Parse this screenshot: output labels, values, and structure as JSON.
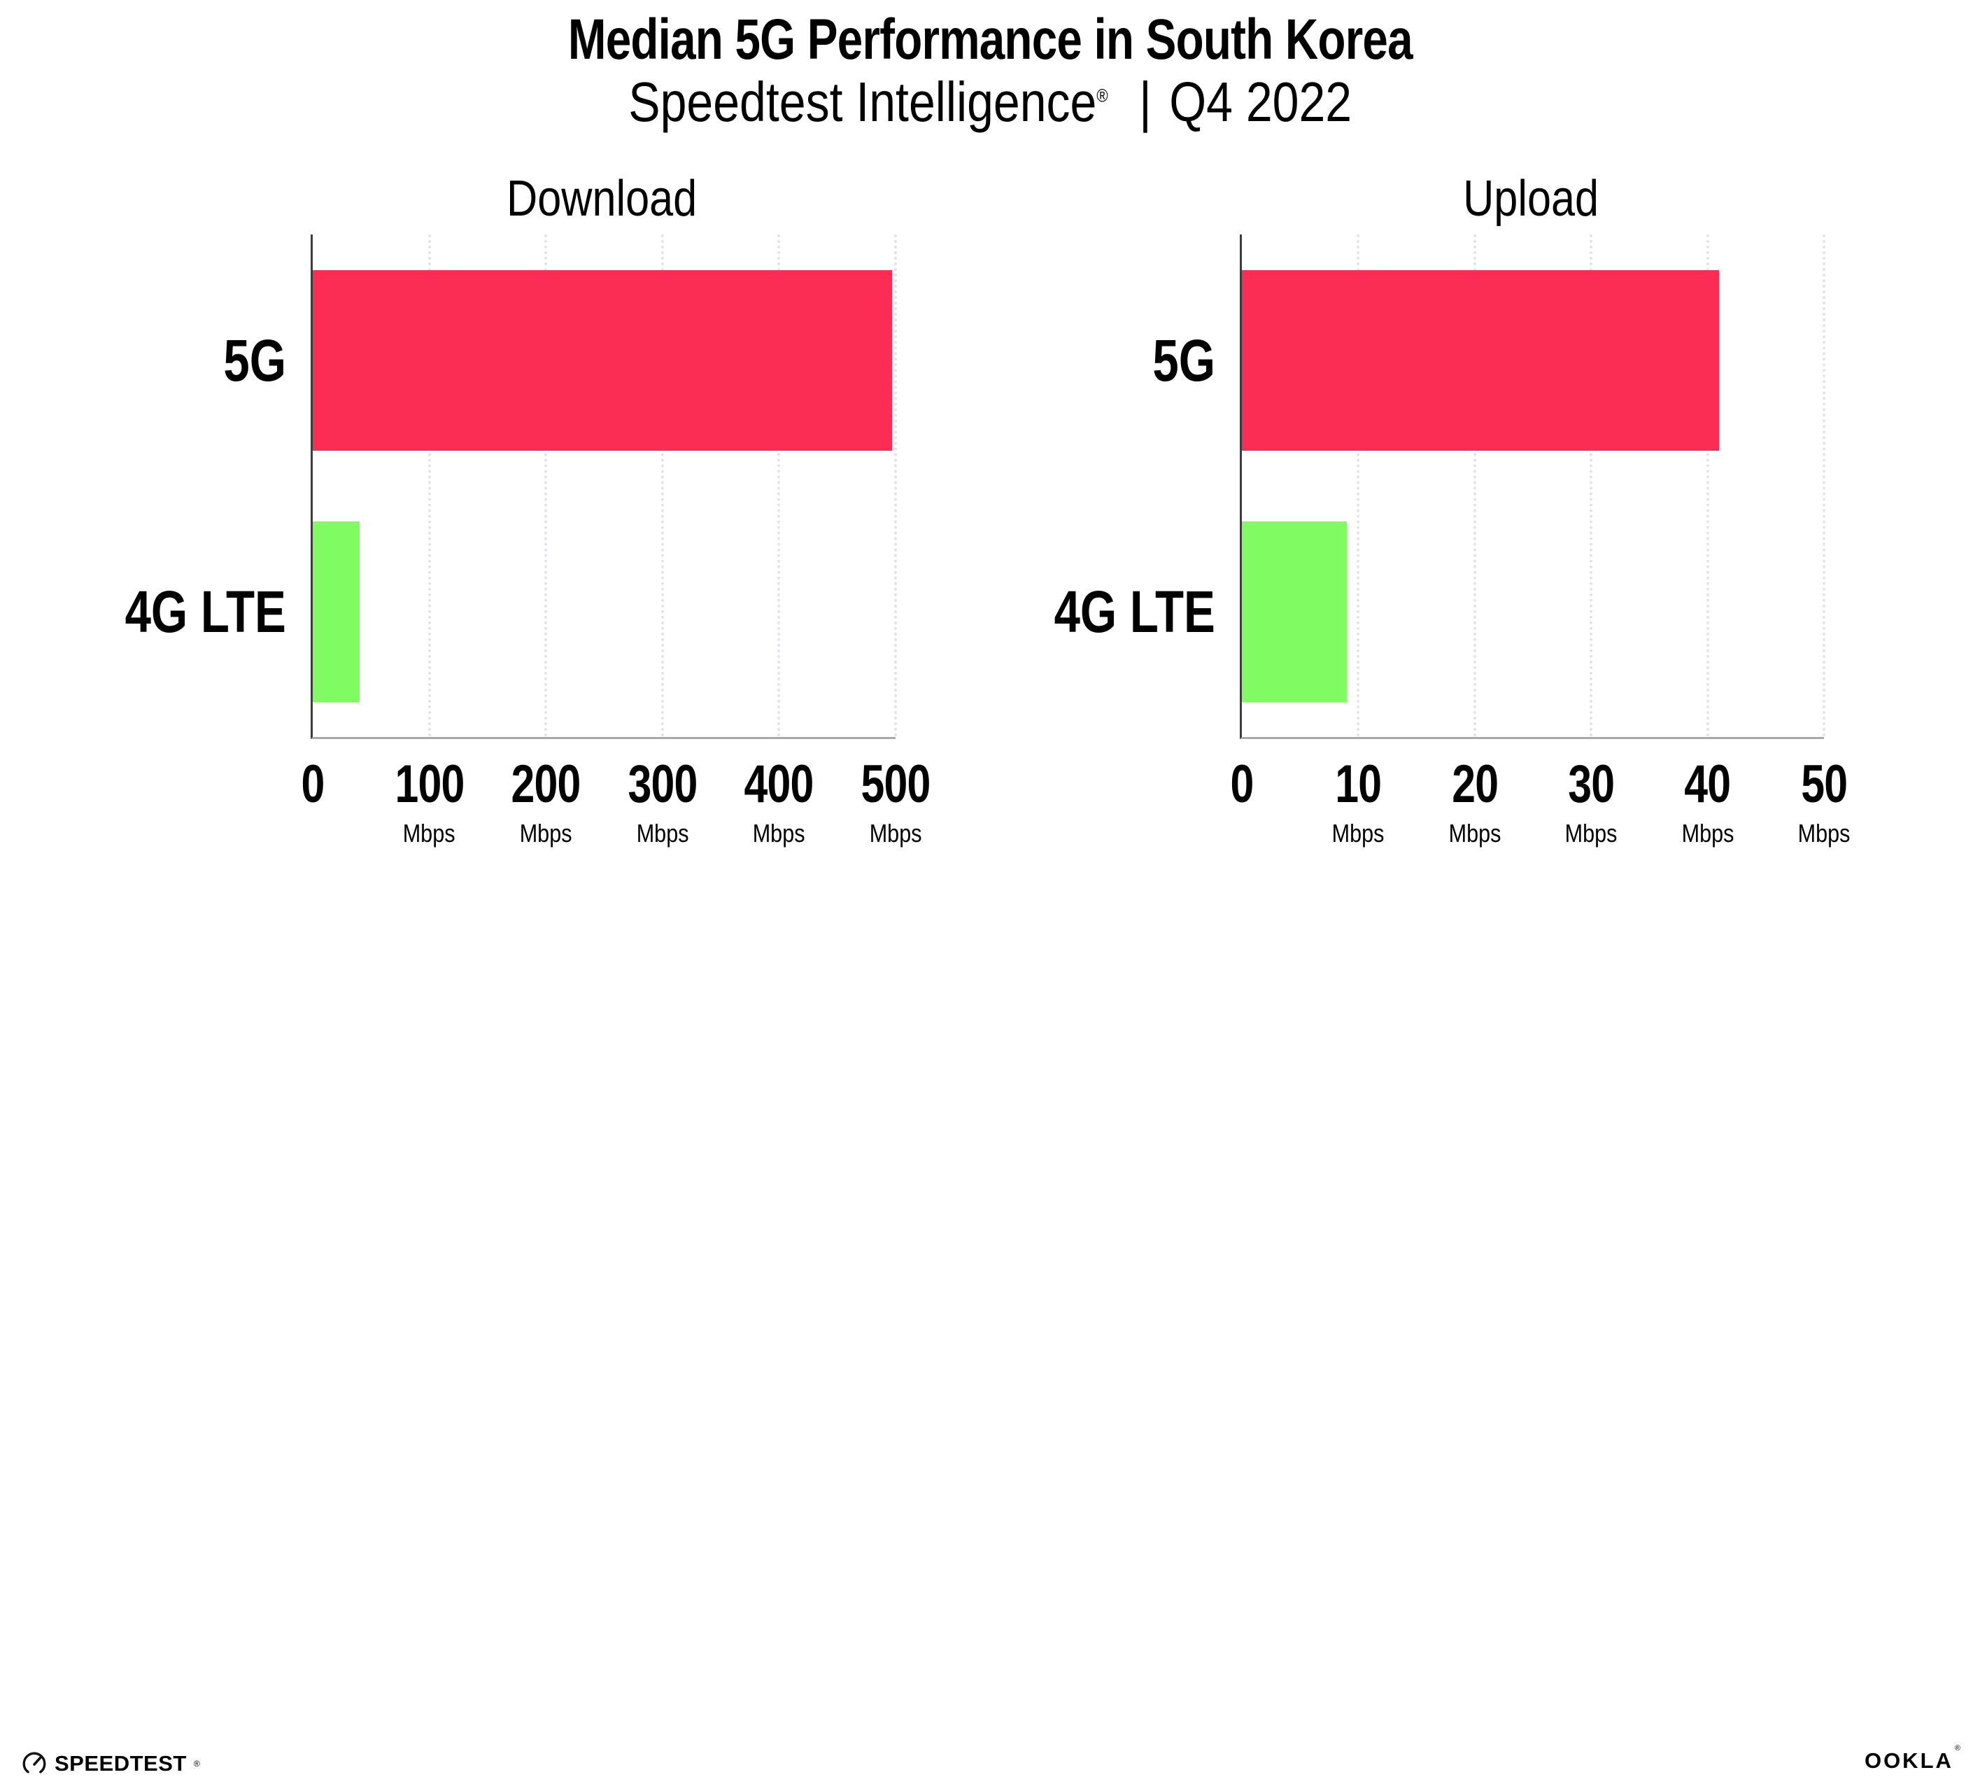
{
  "header": {
    "title": "Median 5G Performance in South Korea",
    "subtitle_brand": "Speedtest Intelligence",
    "subtitle_registered": "®",
    "subtitle_separator": "|",
    "subtitle_period": "Q4 2022"
  },
  "colors": {
    "bar_colors": [
      "#FC2D55",
      "#80FB61"
    ],
    "gridline": "#E2E2EE",
    "y_axis_line": "#3D3D3D",
    "x_axis_line": "#A9A9A9",
    "text": "#000000"
  },
  "chart_data": [
    {
      "type": "bar",
      "orientation": "horizontal",
      "title": "Download",
      "categories": [
        "5G",
        "4G LTE"
      ],
      "values": [
        497,
        40
      ],
      "unit": "Mbps",
      "xlim": [
        0,
        500
      ],
      "ticks": [
        0,
        100,
        200,
        300,
        400,
        500
      ],
      "tick_unit": "Mbps",
      "show_unit_on_zero": false,
      "grid": "vertical-dotted",
      "legend": "none"
    },
    {
      "type": "bar",
      "orientation": "horizontal",
      "title": "Upload",
      "categories": [
        "5G",
        "4G LTE"
      ],
      "values": [
        41,
        9
      ],
      "unit": "Mbps",
      "xlim": [
        0,
        50
      ],
      "ticks": [
        0,
        10,
        20,
        30,
        40,
        50
      ],
      "tick_unit": "Mbps",
      "show_unit_on_zero": false,
      "grid": "vertical-dotted",
      "legend": "none"
    }
  ],
  "footer": {
    "speedtest_label": "SPEEDTEST",
    "speedtest_registered": "®",
    "ookla_label": "OOKLA",
    "ookla_registered": "®"
  }
}
